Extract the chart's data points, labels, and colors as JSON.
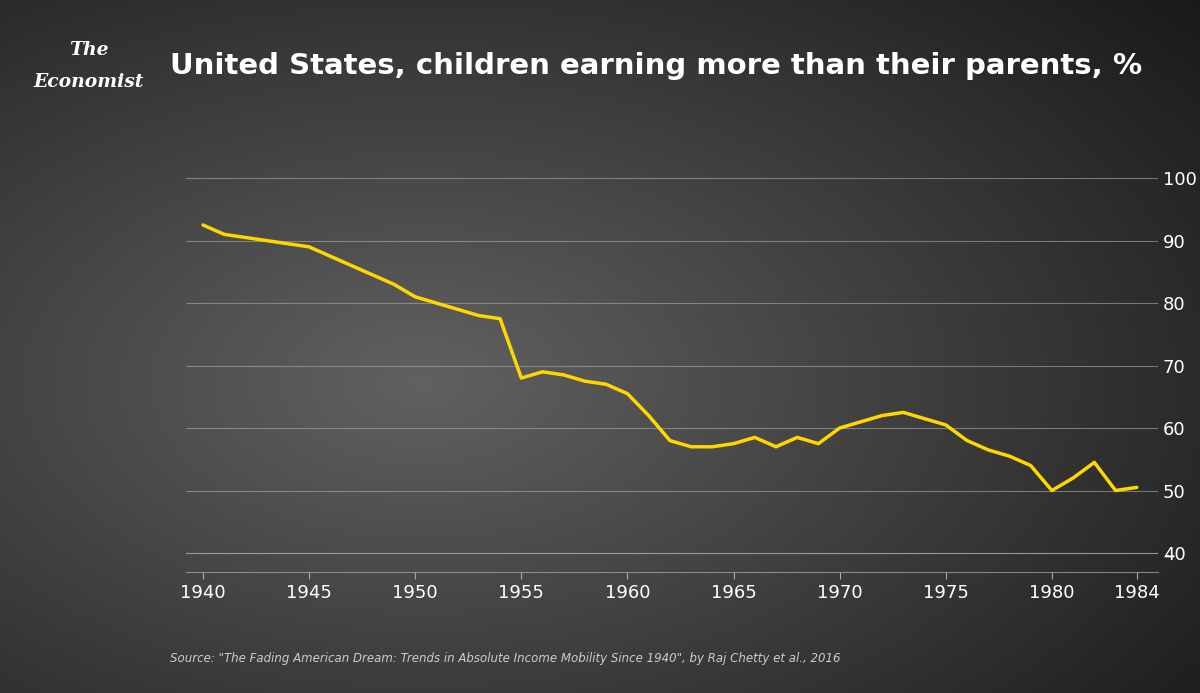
{
  "title": "United States, children earning more than their parents, %",
  "source": "Source: \"The Fading American Dream: Trends in Absolute Income Mobility Since 1940\", by Raj Chetty et al., 2016",
  "line_color": "#FFD700",
  "text_color": "#ffffff",
  "economist_red": "#cc0000",
  "grid_color": "#aaaaaa",
  "years": [
    1940,
    1941,
    1942,
    1943,
    1944,
    1945,
    1946,
    1947,
    1948,
    1949,
    1950,
    1951,
    1952,
    1953,
    1954,
    1955,
    1956,
    1957,
    1958,
    1959,
    1960,
    1961,
    1962,
    1963,
    1964,
    1965,
    1966,
    1967,
    1968,
    1969,
    1970,
    1971,
    1972,
    1973,
    1974,
    1975,
    1976,
    1977,
    1978,
    1979,
    1980,
    1981,
    1982,
    1983,
    1984
  ],
  "values": [
    92.5,
    91.0,
    90.5,
    90.0,
    89.5,
    89.0,
    87.5,
    86.0,
    84.5,
    83.0,
    81.0,
    80.0,
    79.0,
    78.0,
    77.5,
    68.0,
    69.0,
    68.5,
    67.5,
    67.0,
    65.5,
    62.0,
    58.0,
    57.0,
    57.0,
    57.5,
    58.5,
    57.0,
    58.5,
    57.5,
    60.0,
    61.0,
    62.0,
    62.5,
    61.5,
    60.5,
    58.0,
    56.5,
    55.5,
    54.0,
    50.0,
    52.0,
    54.5,
    50.0,
    50.5
  ],
  "yticks": [
    40,
    50,
    60,
    70,
    80,
    90,
    100
  ],
  "xticks": [
    1940,
    1945,
    1950,
    1955,
    1960,
    1965,
    1970,
    1975,
    1980,
    1984
  ],
  "ylim": [
    37,
    103
  ],
  "xlim": [
    1939.2,
    1985.0
  ]
}
